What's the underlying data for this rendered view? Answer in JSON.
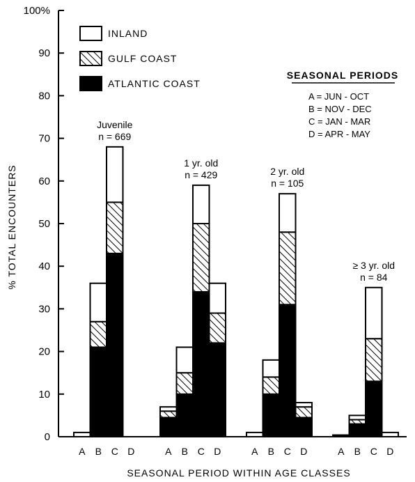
{
  "chart_data": {
    "type": "bar",
    "stacked": true,
    "ylabel": "% TOTAL ENCOUNTERS",
    "xlabel": "SEASONAL PERIOD WITHIN AGE CLASSES",
    "ylim": [
      0,
      100
    ],
    "yticks": [
      "0",
      "10",
      "20",
      "30",
      "40",
      "50",
      "60",
      "70",
      "80",
      "90",
      "100%"
    ],
    "colors": {
      "inland": "#ffffff",
      "gulf": "#hatch",
      "atlantic": "#000000"
    },
    "legend": [
      {
        "key": "inland",
        "label": "INLAND"
      },
      {
        "key": "gulf",
        "label": "GULF COAST"
      },
      {
        "key": "atlantic",
        "label": "ATLANTIC COAST"
      }
    ],
    "legend_position": "top-left",
    "seasonal_periods": {
      "title": "SEASONAL PERIODS",
      "entries": [
        "A = JUN - OCT",
        "B = NOV - DEC",
        "C = JAN - MAR",
        "D = APR - MAY"
      ]
    },
    "groups": [
      {
        "label_lines": [
          "Juvenile",
          "n = 669"
        ],
        "bars": [
          {
            "period": "A",
            "atlantic": 0,
            "gulf": 0,
            "inland": 1
          },
          {
            "period": "B",
            "atlantic": 21,
            "gulf": 6,
            "inland": 9
          },
          {
            "period": "C",
            "atlantic": 43,
            "gulf": 12,
            "inland": 13
          },
          {
            "period": "D",
            "atlantic": 0,
            "gulf": 0,
            "inland": 0
          }
        ]
      },
      {
        "label_lines": [
          "1 yr. old",
          "n = 429"
        ],
        "bars": [
          {
            "period": "A",
            "atlantic": 4.5,
            "gulf": 1.5,
            "inland": 1
          },
          {
            "period": "B",
            "atlantic": 10,
            "gulf": 5,
            "inland": 6
          },
          {
            "period": "C",
            "atlantic": 34,
            "gulf": 16,
            "inland": 9
          },
          {
            "period": "D",
            "atlantic": 22,
            "gulf": 7,
            "inland": 7
          }
        ]
      },
      {
        "label_lines": [
          "2 yr. old",
          "n = 105"
        ],
        "bars": [
          {
            "period": "A",
            "atlantic": 0,
            "gulf": 0,
            "inland": 1
          },
          {
            "period": "B",
            "atlantic": 10,
            "gulf": 4,
            "inland": 4
          },
          {
            "period": "C",
            "atlantic": 31,
            "gulf": 17,
            "inland": 9
          },
          {
            "period": "D",
            "atlantic": 4.5,
            "gulf": 2.5,
            "inland": 1
          }
        ]
      },
      {
        "label_lines": [
          "≥ 3 yr. old",
          "n = 84"
        ],
        "bars": [
          {
            "period": "A",
            "atlantic": 0.4,
            "gulf": 0,
            "inland": 0
          },
          {
            "period": "B",
            "atlantic": 3,
            "gulf": 1,
            "inland": 1
          },
          {
            "period": "C",
            "atlantic": 13,
            "gulf": 10,
            "inland": 12
          },
          {
            "period": "D",
            "atlantic": 0,
            "gulf": 0,
            "inland": 1
          }
        ]
      }
    ]
  }
}
